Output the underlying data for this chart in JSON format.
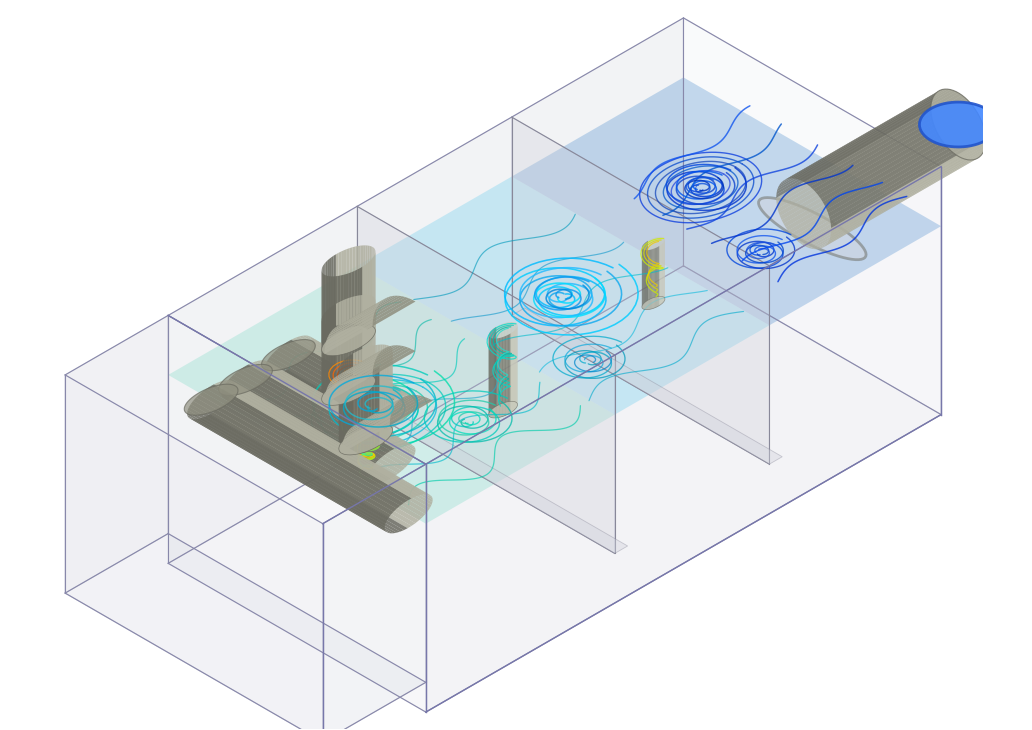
{
  "figsize": [
    10.32,
    7.3
  ],
  "dpi": 100,
  "bg_color": "#ffffff",
  "box_face_top": "#d8dae2",
  "box_face_side_light": "#e8eaf0",
  "box_face_side_dark": "#c8cad4",
  "box_edge_color": "#8888aa",
  "pipe_color_dark": "#7a7a72",
  "pipe_color_light": "#b8b8aa",
  "pipe_color_mid": "#9a9a90",
  "water_color": "#aaccee",
  "water_alpha": 0.35,
  "stream_cyan": "#00ccff",
  "stream_blue": "#0044dd",
  "stream_green": "#00ee88",
  "stream_teal": "#00aacc",
  "outlet_cap_color": "#4488ff"
}
